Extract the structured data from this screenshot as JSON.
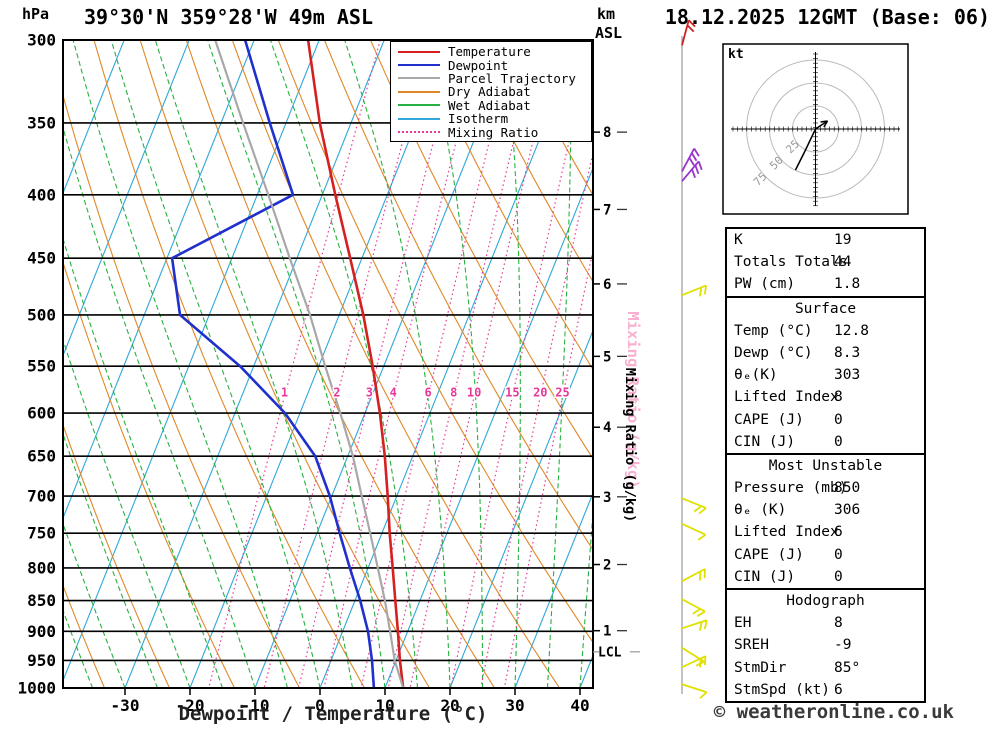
{
  "header": {
    "pressure_unit": "hPa",
    "title": "39°30'N 359°28'W 49m ASL",
    "km_label": "km",
    "asl_label": "ASL",
    "datetime": "18.12.2025 12GMT (Base: 06)"
  },
  "axes": {
    "xlabel": "Dewpoint / Temperature (°C)",
    "mixing_ratio_axis_label": "Mixing Ratio (g/kg)",
    "lcl_label": "LCL"
  },
  "colors": {
    "temperature": "#d42020",
    "dewpoint": "#2030cc",
    "parcel": "#a8a8a8",
    "dry_adiabat": "#e08828",
    "wet_adiabat": "#28b040",
    "isotherm": "#30a8d8",
    "mixing_ratio": "#e83898",
    "mixing_ratio_light": "#f8b0d0",
    "pressure_line": "#000000"
  },
  "legend": {
    "items": [
      {
        "label": "Temperature",
        "color_key": "temperature",
        "style": "solid"
      },
      {
        "label": "Dewpoint",
        "color_key": "dewpoint",
        "style": "solid"
      },
      {
        "label": "Parcel Trajectory",
        "color_key": "parcel",
        "style": "solid"
      },
      {
        "label": "Dry Adiabat",
        "color_key": "dry_adiabat",
        "style": "solid"
      },
      {
        "label": "Wet Adiabat",
        "color_key": "wet_adiabat",
        "style": "solid"
      },
      {
        "label": "Isotherm",
        "color_key": "isotherm",
        "style": "solid"
      },
      {
        "label": "Mixing Ratio",
        "color_key": "mixing_ratio",
        "style": "dotted"
      }
    ]
  },
  "chart_data": {
    "type": "line",
    "subtype": "skewt-logp-sounding",
    "pressure_axis": {
      "scale": "log",
      "range": [
        300,
        1000
      ],
      "ticks": [
        300,
        350,
        400,
        450,
        500,
        550,
        600,
        650,
        700,
        750,
        800,
        850,
        900,
        950,
        1000
      ]
    },
    "temp_axis": {
      "unit": "°C",
      "ticks": [
        -30,
        -20,
        -10,
        0,
        10,
        20,
        30,
        40
      ]
    },
    "km_axis": {
      "ticks": [
        1,
        2,
        3,
        4,
        5,
        6,
        7,
        8
      ],
      "pressures": {
        "1": 899,
        "2": 795,
        "3": 701,
        "4": 616,
        "5": 540,
        "6": 472,
        "7": 411,
        "8": 356
      }
    },
    "lcl": {
      "pressure": 935
    },
    "mixing_ratio_lines": [
      1,
      2,
      3,
      4,
      6,
      8,
      10,
      15,
      20,
      25
    ],
    "mixing_label_pressure": 582,
    "isotherm_step": 10,
    "dry_adiabat_step": 10,
    "wet_adiabat_step": 5,
    "series": [
      {
        "name": "Temperature",
        "color_key": "temperature",
        "width": 2.6,
        "points": [
          [
            1000,
            12.8
          ],
          [
            950,
            10.6
          ],
          [
            900,
            8.5
          ],
          [
            850,
            6.2
          ],
          [
            800,
            3.8
          ],
          [
            750,
            1.2
          ],
          [
            700,
            -1.4
          ],
          [
            650,
            -4.3
          ],
          [
            600,
            -7.7
          ],
          [
            550,
            -11.7
          ],
          [
            500,
            -16.3
          ],
          [
            450,
            -21.8
          ],
          [
            400,
            -28.0
          ],
          [
            350,
            -34.8
          ],
          [
            300,
            -41.7
          ]
        ]
      },
      {
        "name": "Dewpoint",
        "color_key": "dewpoint",
        "width": 2.6,
        "points": [
          [
            1000,
            8.3
          ],
          [
            950,
            6.3
          ],
          [
            900,
            3.9
          ],
          [
            850,
            0.8
          ],
          [
            800,
            -2.8
          ],
          [
            750,
            -6.5
          ],
          [
            700,
            -10.3
          ],
          [
            650,
            -15.0
          ],
          [
            600,
            -22.3
          ],
          [
            550,
            -32.1
          ],
          [
            500,
            -44.5
          ],
          [
            450,
            -49.2
          ],
          [
            400,
            -34.5
          ],
          [
            350,
            -42.5
          ],
          [
            300,
            -51.4
          ]
        ]
      },
      {
        "name": "Parcel Trajectory",
        "color_key": "parcel",
        "width": 2.2,
        "points": [
          [
            1000,
            12.8
          ],
          [
            950,
            9.8
          ],
          [
            900,
            7.3
          ],
          [
            850,
            4.6
          ],
          [
            800,
            1.5
          ],
          [
            750,
            -1.8
          ],
          [
            700,
            -5.4
          ],
          [
            650,
            -9.2
          ],
          [
            600,
            -13.8
          ],
          [
            550,
            -19.0
          ],
          [
            500,
            -24.5
          ],
          [
            450,
            -31.1
          ],
          [
            400,
            -38.3
          ],
          [
            350,
            -46.6
          ],
          [
            300,
            -56.0
          ]
        ]
      }
    ],
    "wind_barbs": [
      {
        "pressure": 303,
        "color": "#cc2222",
        "angle": -75,
        "ticks": 2
      },
      {
        "pressure": 383,
        "color": "#9933cc",
        "angle": -62,
        "ticks": 3
      },
      {
        "pressure": 390,
        "color": "#9933cc",
        "angle": -50,
        "ticks": 3
      },
      {
        "pressure": 482,
        "color": "#e0e000",
        "angle": -22,
        "ticks": 2
      },
      {
        "pressure": 703,
        "color": "#e0e000",
        "angle": 22,
        "ticks": 2
      },
      {
        "pressure": 737,
        "color": "#e0e000",
        "angle": 25,
        "ticks": 1
      },
      {
        "pressure": 820,
        "color": "#e0e000",
        "angle": -28,
        "ticks": 2
      },
      {
        "pressure": 848,
        "color": "#e0e000",
        "angle": 28,
        "ticks": 2
      },
      {
        "pressure": 895,
        "color": "#e0e000",
        "angle": -18,
        "ticks": 2
      },
      {
        "pressure": 928,
        "color": "#e0e000",
        "angle": 32,
        "ticks": 1
      },
      {
        "pressure": 962,
        "color": "#e0e000",
        "angle": -25,
        "ticks": 2
      },
      {
        "pressure": 993,
        "color": "#e0e000",
        "angle": 18,
        "ticks": 1
      }
    ],
    "hodograph": {
      "unit": "kt",
      "rings": [
        25,
        50,
        75
      ],
      "trace": [
        [
          12,
          -8
        ],
        [
          0,
          0
        ],
        [
          -10,
          21
        ],
        [
          -20,
          41
        ]
      ]
    }
  },
  "hodograph_panel": {
    "unit_label": "kt"
  },
  "table": {
    "sections": [
      {
        "header": null,
        "rows": [
          [
            "K",
            "19"
          ],
          [
            "Totals Totals",
            "44"
          ],
          [
            "PW (cm)",
            "1.8"
          ]
        ]
      },
      {
        "header": "Surface",
        "rows": [
          [
            "Temp (°C)",
            "12.8"
          ],
          [
            "Dewp (°C)",
            "8.3"
          ],
          [
            "θₑ(K)",
            "303"
          ],
          [
            "Lifted Index",
            "8"
          ],
          [
            "CAPE (J)",
            "0"
          ],
          [
            "CIN (J)",
            "0"
          ]
        ]
      },
      {
        "header": "Most Unstable",
        "rows": [
          [
            "Pressure (mb)",
            "850"
          ],
          [
            "θₑ (K)",
            "306"
          ],
          [
            "Lifted Index",
            "6"
          ],
          [
            "CAPE (J)",
            "0"
          ],
          [
            "CIN (J)",
            "0"
          ]
        ]
      },
      {
        "header": "Hodograph",
        "rows": [
          [
            "EH",
            "8"
          ],
          [
            "SREH",
            "-9"
          ],
          [
            "StmDir",
            "85°"
          ],
          [
            "StmSpd (kt)",
            "6"
          ]
        ]
      }
    ]
  },
  "footer": {
    "copyright": "© weatheronline.co.uk"
  }
}
